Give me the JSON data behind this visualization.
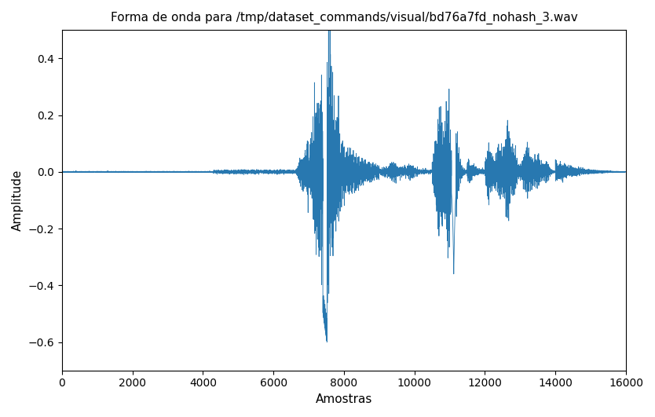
{
  "title": "Forma de onda para /tmp/dataset_commands/visual/bd76a7fd_nohash_3.wav",
  "xlabel": "Amostras",
  "ylabel": "Amplitude",
  "xlim": [
    0,
    16000
  ],
  "ylim": [
    -0.7,
    0.5
  ],
  "line_color": "#2878b0",
  "figsize": [
    8.34,
    5.31
  ],
  "dpi": 100,
  "n_samples": 16000
}
